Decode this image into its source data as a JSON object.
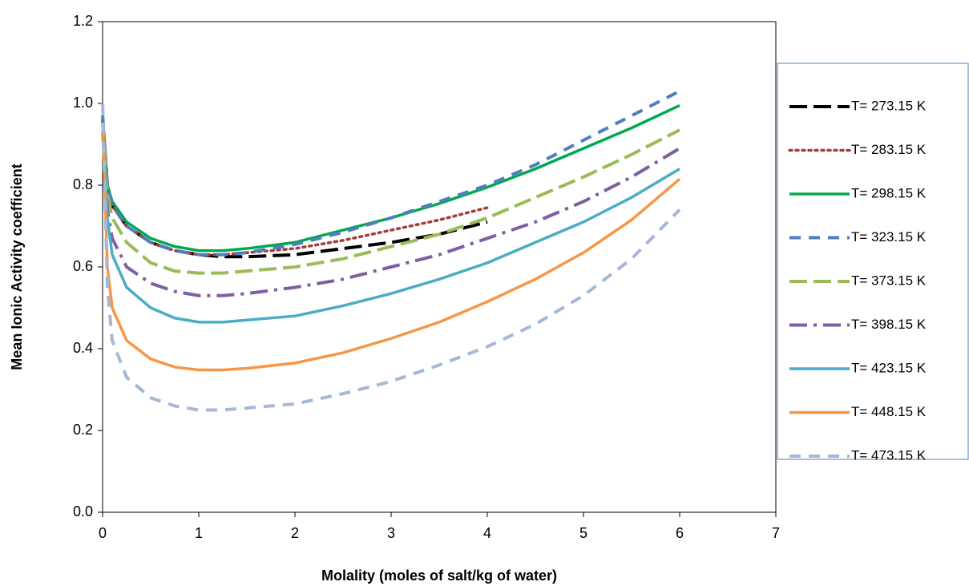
{
  "chart_data": {
    "type": "line",
    "xlabel": "Molality (moles of salt/kg of water)",
    "ylabel": "Mean Ionic Activity coefficient",
    "x": [
      0.001,
      0.05,
      0.1,
      0.25,
      0.5,
      0.75,
      1,
      1.25,
      1.5,
      2,
      2.5,
      3,
      3.5,
      4,
      4.5,
      5,
      5.5,
      6
    ],
    "xlim": [
      0,
      7
    ],
    "xticks": [
      0,
      1,
      2,
      3,
      4,
      5,
      6,
      7
    ],
    "ylim": [
      0,
      1.2
    ],
    "yticks": [
      {
        "value": 0,
        "label": "0.0"
      },
      0.2,
      0.4,
      0.6,
      0.8,
      {
        "value": 1,
        "label": "1.0"
      },
      1.2
    ],
    "legend": "right",
    "series": [
      {
        "name": "T= 273.15 K",
        "color": "#000000",
        "dash": "longdash",
        "values": [
          0.96,
          0.8,
          0.75,
          0.7,
          0.66,
          0.64,
          0.63,
          0.625,
          0.625,
          0.63,
          0.645,
          0.66,
          0.68,
          0.71,
          null,
          null,
          null,
          null
        ]
      },
      {
        "name": "T= 283.15 K",
        "color": "#a0413e",
        "dash": "dotted",
        "values": [
          0.96,
          0.8,
          0.75,
          0.7,
          0.66,
          0.64,
          0.63,
          0.63,
          0.635,
          0.645,
          0.665,
          0.69,
          0.715,
          0.745,
          null,
          null,
          null,
          null
        ]
      },
      {
        "name": "T= 298.15 K",
        "color": "#00a94f",
        "dash": "solid",
        "values": [
          0.96,
          0.8,
          0.76,
          0.71,
          0.67,
          0.65,
          0.64,
          0.64,
          0.645,
          0.66,
          0.69,
          0.72,
          0.755,
          0.795,
          0.84,
          0.89,
          0.94,
          0.995
        ]
      },
      {
        "name": "T= 323.15 K",
        "color": "#4f7fbf",
        "dash": "dashed",
        "values": [
          0.97,
          0.8,
          0.75,
          0.7,
          0.66,
          0.64,
          0.63,
          0.63,
          0.635,
          0.655,
          0.685,
          0.72,
          0.76,
          0.8,
          0.85,
          0.91,
          0.97,
          1.03
        ]
      },
      {
        "name": "T= 373.15 K",
        "color": "#9bbb59",
        "dash": "longdash",
        "values": [
          0.95,
          0.78,
          0.72,
          0.66,
          0.61,
          0.59,
          0.585,
          0.585,
          0.59,
          0.6,
          0.62,
          0.65,
          0.68,
          0.72,
          0.77,
          0.82,
          0.875,
          0.935
        ]
      },
      {
        "name": "T= 398.15 K",
        "color": "#7f5fa0",
        "dash": "dashdot",
        "values": [
          0.93,
          0.74,
          0.67,
          0.6,
          0.56,
          0.54,
          0.53,
          0.53,
          0.535,
          0.55,
          0.57,
          0.6,
          0.63,
          0.67,
          0.71,
          0.76,
          0.82,
          0.89
        ]
      },
      {
        "name": "T= 423.15 K",
        "color": "#4bacc6",
        "dash": "solid",
        "values": [
          0.93,
          0.72,
          0.63,
          0.55,
          0.5,
          0.475,
          0.465,
          0.465,
          0.47,
          0.48,
          0.505,
          0.535,
          0.57,
          0.61,
          0.66,
          0.71,
          0.77,
          0.84
        ]
      },
      {
        "name": "T= 448.15 K",
        "color": "#f79646",
        "dash": "solid",
        "values": [
          0.95,
          0.6,
          0.5,
          0.42,
          0.375,
          0.355,
          0.348,
          0.348,
          0.352,
          0.365,
          0.39,
          0.425,
          0.465,
          0.515,
          0.57,
          0.635,
          0.715,
          0.815
        ]
      },
      {
        "name": "T= 473.15 K",
        "color": "#a5b8d6",
        "dash": "dashed",
        "values": [
          1.0,
          0.55,
          0.42,
          0.33,
          0.28,
          0.26,
          0.25,
          0.25,
          0.255,
          0.265,
          0.29,
          0.32,
          0.36,
          0.405,
          0.46,
          0.53,
          0.62,
          0.74
        ]
      }
    ]
  }
}
